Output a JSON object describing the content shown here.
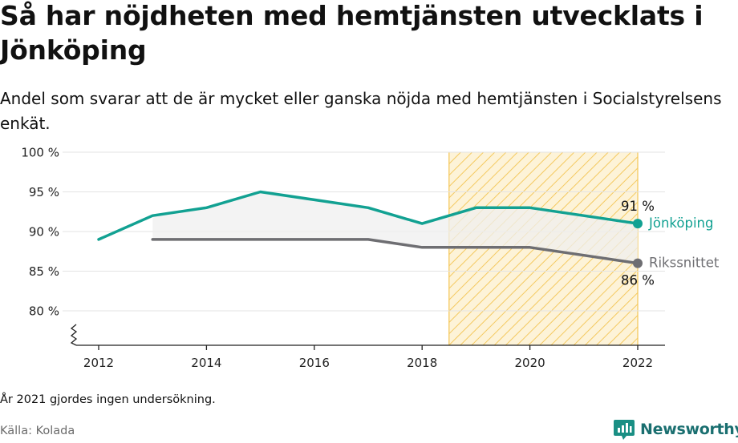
{
  "title": "Så har nöjdheten med hemtjänsten utvecklats i Jönköping",
  "subtitle": "Andel som svarar att de är mycket eller ganska nöjda med hemtjänsten i Socialstyrelsens enkät.",
  "footnote": "År 2021 gjordes ingen undersökning.",
  "source": "Källa: Kolada",
  "brand": "Newsworthy",
  "colors": {
    "jonkoping": "#12a192",
    "riks": "#6e6e72",
    "highlight": "#f6c64b",
    "grid": "#e3e3e3"
  },
  "chart_data": {
    "type": "line",
    "title": "Så har nöjdheten med hemtjänsten utvecklats i Jönköping",
    "xlabel": "",
    "ylabel": "",
    "xlim": [
      2011.7,
      2022.5
    ],
    "ylim": [
      76,
      100
    ],
    "yticks": [
      80,
      85,
      90,
      95,
      100
    ],
    "ytick_labels": [
      "80 %",
      "85 %",
      "90 %",
      "95 %",
      "100 %"
    ],
    "xticks": [
      2012,
      2014,
      2016,
      2018,
      2020,
      2022
    ],
    "xtick_labels": [
      "2012",
      "2014",
      "2016",
      "2018",
      "2020",
      "2022"
    ],
    "highlight_range": [
      2018.5,
      2022
    ],
    "grid": true,
    "axis_break": true,
    "series": [
      {
        "name": "Jönköping",
        "x": [
          2012,
          2013,
          2014,
          2015,
          2016,
          2017,
          2018,
          2019,
          2020,
          2022
        ],
        "values": [
          89,
          92,
          93,
          95,
          94,
          93,
          91,
          93,
          93,
          91
        ],
        "end_label": "91 %"
      },
      {
        "name": "Rikssnittet",
        "x": [
          2013,
          2014,
          2015,
          2016,
          2017,
          2018,
          2019,
          2020,
          2022
        ],
        "values": [
          89,
          89,
          89,
          89,
          89,
          88,
          88,
          88,
          86
        ],
        "end_label": "86 %"
      }
    ]
  }
}
